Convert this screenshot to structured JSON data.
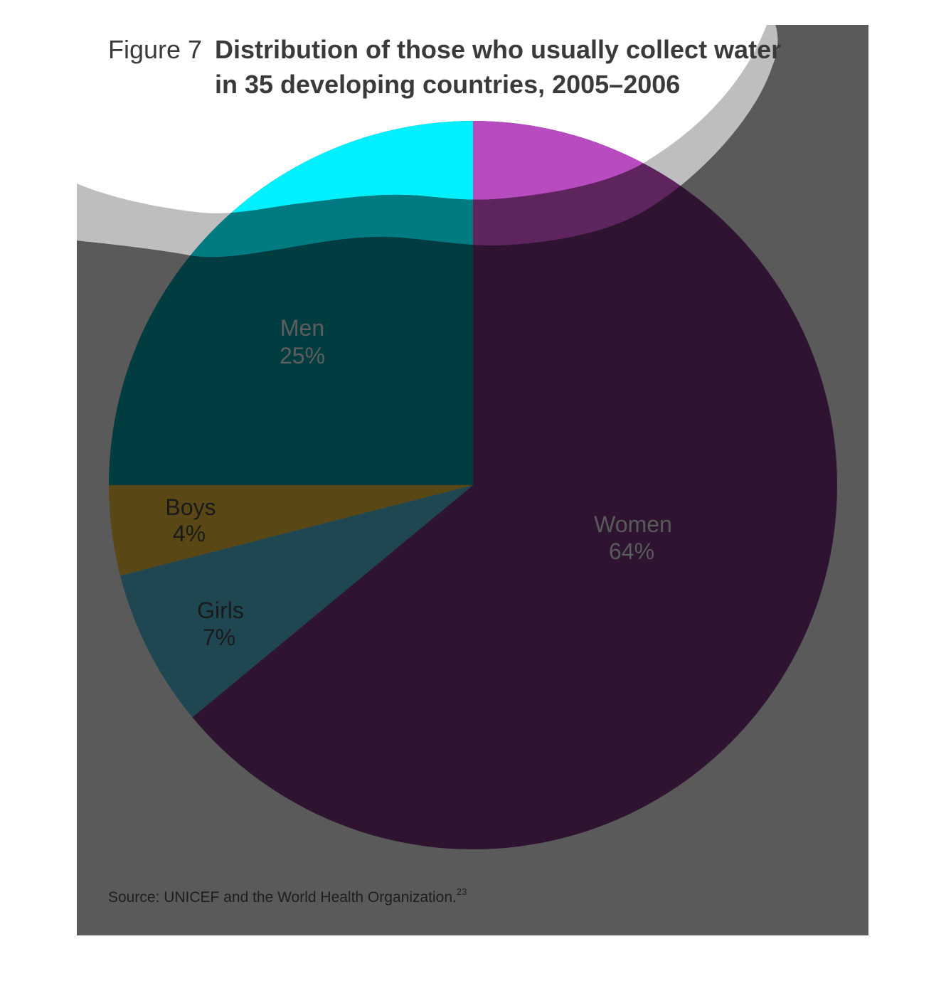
{
  "figure": {
    "label": "Figure 7",
    "title_line1": "Distribution of those who usually collect water",
    "title_line2": "in 35 developing countries, 2005–2006",
    "source": "Source: UNICEF and the World Health Organization.",
    "source_note": "23"
  },
  "colors": {
    "panel": "#5a5a5a",
    "wave": "#bebebe",
    "women": "#2e1430",
    "men": "#003c40",
    "boys": "#594816",
    "girls": "#1f4752",
    "cyan": "#00f0ff",
    "magenta": "#b84bc0",
    "teal_band": "#007b82",
    "purple_band": "#5e245e"
  },
  "chart_data": {
    "type": "pie",
    "title": "Distribution of those who usually collect water in 35 developing countries, 2005–2006",
    "start": "12 o'clock",
    "direction": "counterclockwise",
    "slices": [
      {
        "key": "men",
        "name": "Men",
        "value": 25,
        "label": "25%"
      },
      {
        "key": "boys",
        "name": "Boys",
        "value": 4,
        "label": "4%"
      },
      {
        "key": "girls",
        "name": "Girls",
        "value": 7,
        "label": "7%"
      },
      {
        "key": "women",
        "name": "Women",
        "value": 64,
        "label": "64%"
      }
    ]
  }
}
